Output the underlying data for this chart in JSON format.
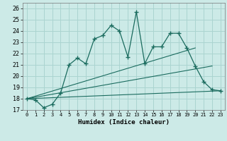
{
  "xlabel": "Humidex (Indice chaleur)",
  "background_color": "#cceae7",
  "grid_color": "#aad4d0",
  "line_color": "#1a6b5e",
  "xlim": [
    -0.5,
    23.5
  ],
  "ylim": [
    17,
    26.5
  ],
  "xticks": [
    0,
    1,
    2,
    3,
    4,
    5,
    6,
    7,
    8,
    9,
    10,
    11,
    12,
    13,
    14,
    15,
    16,
    17,
    18,
    19,
    20,
    21,
    22,
    23
  ],
  "yticks": [
    17,
    18,
    19,
    20,
    21,
    22,
    23,
    24,
    25,
    26
  ],
  "line1_x": [
    0,
    1,
    2,
    3,
    4,
    5,
    6,
    7,
    8,
    9,
    10,
    11,
    12,
    13,
    14,
    15,
    16,
    17,
    18,
    19,
    20,
    21,
    22,
    23
  ],
  "line1_y": [
    18.0,
    17.9,
    17.2,
    17.5,
    18.5,
    21.0,
    21.6,
    21.1,
    23.3,
    23.6,
    24.5,
    24.0,
    21.7,
    25.7,
    21.1,
    22.6,
    22.6,
    23.8,
    23.8,
    22.5,
    20.9,
    19.5,
    18.8,
    18.7
  ],
  "line2_x": [
    0,
    20
  ],
  "line2_y": [
    18.0,
    22.5
  ],
  "line3_x": [
    0,
    22
  ],
  "line3_y": [
    18.0,
    20.9
  ],
  "line4_x": [
    0,
    23
  ],
  "line4_y": [
    18.0,
    18.7
  ]
}
